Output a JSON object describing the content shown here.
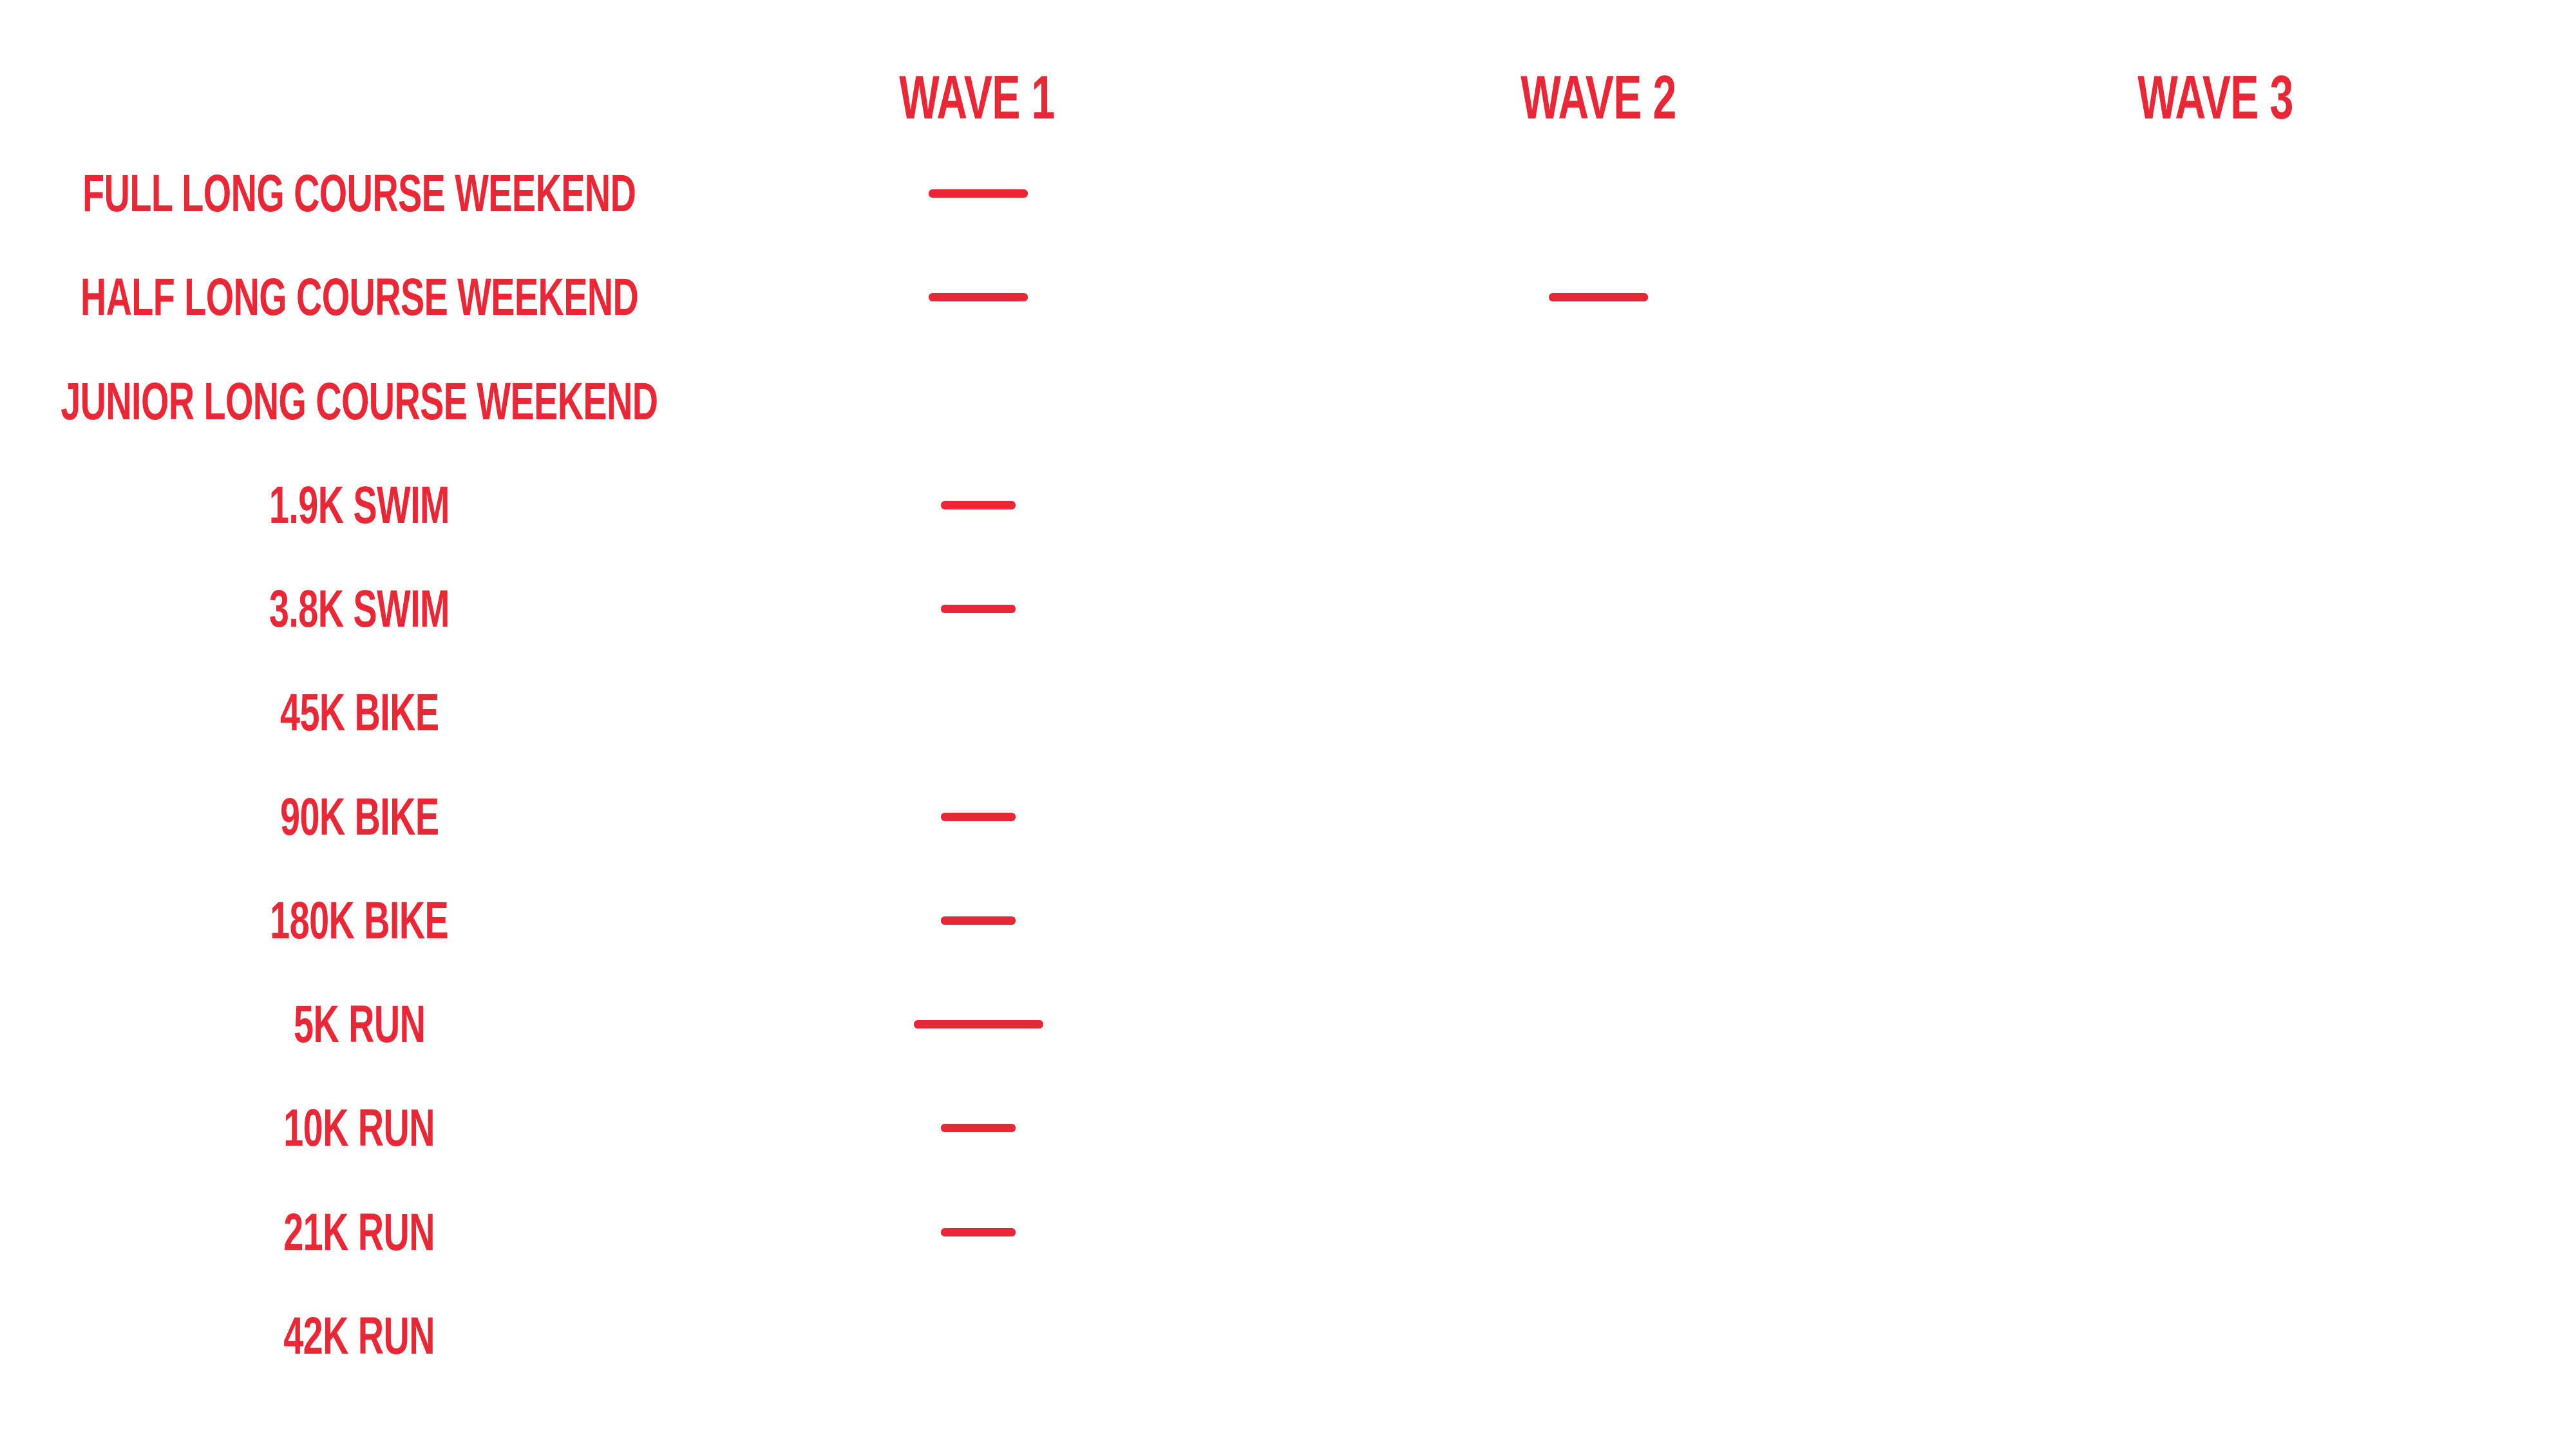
{
  "page": {
    "background": "#ffffff",
    "accent_red": "#e82837"
  },
  "header": {
    "columns": [
      {
        "label": "WAVE 1"
      },
      {
        "label": "WAVE 2"
      },
      {
        "label": "WAVE 3"
      }
    ]
  },
  "table": {
    "rows": [
      {
        "label": "FULL LONG COURSE WEEKEND",
        "wave1": "long",
        "wave2": "",
        "wave3": ""
      },
      {
        "label": "HALF LONG COURSE WEEKEND",
        "wave1": "long",
        "wave2": "long",
        "wave3": ""
      },
      {
        "label": "JUNIOR LONG COURSE WEEKEND",
        "wave1": "",
        "wave2": "",
        "wave3": ""
      },
      {
        "label": "1.9K SWIM",
        "wave1": "short",
        "wave2": "",
        "wave3": ""
      },
      {
        "label": "3.8K SWIM",
        "wave1": "short",
        "wave2": "",
        "wave3": ""
      },
      {
        "label": "45K BIKE",
        "wave1": "",
        "wave2": "",
        "wave3": ""
      },
      {
        "label": "90K BIKE",
        "wave1": "short",
        "wave2": "",
        "wave3": ""
      },
      {
        "label": "180K BIKE",
        "wave1": "short",
        "wave2": "",
        "wave3": ""
      },
      {
        "label": "5K RUN",
        "wave1": "xlong",
        "wave2": "",
        "wave3": ""
      },
      {
        "label": "10K RUN",
        "wave1": "short",
        "wave2": "",
        "wave3": ""
      },
      {
        "label": "21K RUN",
        "wave1": "short",
        "wave2": "",
        "wave3": ""
      },
      {
        "label": "42K RUN",
        "wave1": "",
        "wave2": "",
        "wave3": ""
      }
    ]
  },
  "chart_data": {
    "type": "table",
    "title": "",
    "columns": [
      "WAVE 1",
      "WAVE 2",
      "WAVE 3"
    ],
    "row_labels": [
      "FULL LONG COURSE WEEKEND",
      "HALF LONG COURSE WEEKEND",
      "JUNIOR LONG COURSE WEEKEND",
      "1.9K SWIM",
      "3.8K SWIM",
      "45K BIKE",
      "90K BIKE",
      "180K BIKE",
      "5K RUN",
      "10K RUN",
      "21K RUN",
      "42K RUN"
    ],
    "marks": [
      [
        "dash",
        "",
        ""
      ],
      [
        "dash",
        "dash",
        ""
      ],
      [
        "",
        "",
        ""
      ],
      [
        "dash",
        "",
        ""
      ],
      [
        "dash",
        "",
        ""
      ],
      [
        "",
        "",
        ""
      ],
      [
        "dash",
        "",
        ""
      ],
      [
        "dash",
        "",
        ""
      ],
      [
        "dash",
        "",
        ""
      ],
      [
        "dash",
        "",
        ""
      ],
      [
        "dash",
        "",
        ""
      ],
      [
        "",
        "",
        ""
      ]
    ],
    "legend_position": "none",
    "grid": false
  }
}
